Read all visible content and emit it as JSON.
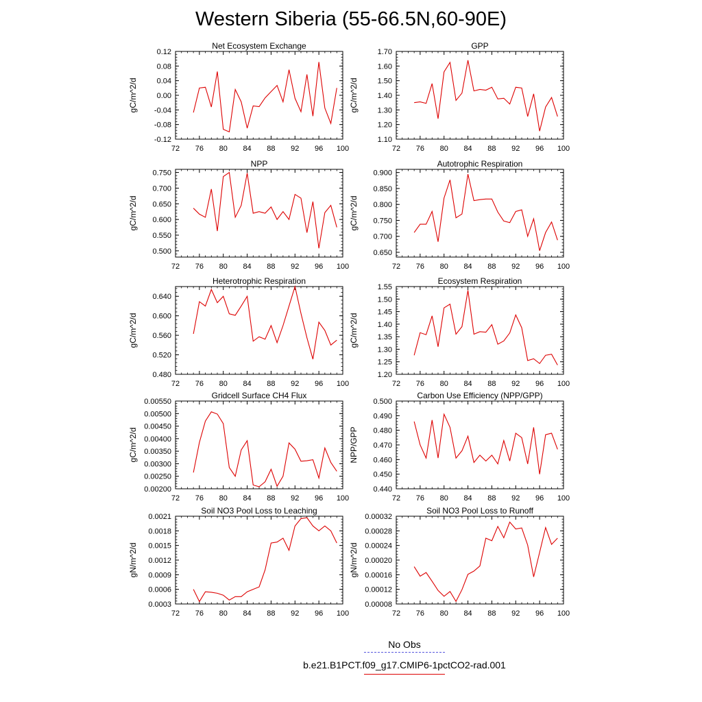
{
  "page": {
    "title": "Western Siberia (55-66.5N,60-90E)"
  },
  "legend": {
    "items": [
      {
        "label": "No Obs",
        "color": "#5555dd",
        "style": "dashed"
      },
      {
        "label": "b.e21.B1PCT.f09_g17.CMIP6-1pctCO2-rad.001",
        "color": "#dd0000",
        "style": "solid"
      }
    ]
  },
  "chart_data": [
    {
      "type": "line",
      "title": "Net Ecosystem Exchange",
      "ylabel": "gC/m^2/d",
      "xlim": [
        72,
        100
      ],
      "ylim": [
        -0.12,
        0.12
      ],
      "yticks": [
        -0.12,
        -0.08,
        -0.04,
        0.0,
        0.04,
        0.08,
        0.12
      ],
      "ytick_labels": [
        "-0.12",
        "-0.08",
        "-0.04",
        "0.00",
        "0.04",
        "0.08",
        "0.12"
      ],
      "xticks": [
        72,
        76,
        80,
        84,
        88,
        92,
        96,
        100
      ],
      "series": [
        {
          "color": "#dd0000",
          "x": [
            75,
            76,
            77,
            78,
            79,
            80,
            81,
            82,
            83,
            84,
            85,
            86,
            87,
            88,
            89,
            90,
            91,
            92,
            93,
            94,
            95,
            96,
            97,
            98,
            99
          ],
          "y": [
            -0.047,
            0.02,
            0.022,
            -0.032,
            0.065,
            -0.093,
            -0.1,
            0.016,
            -0.018,
            -0.09,
            -0.029,
            -0.031,
            -0.007,
            0.01,
            0.027,
            -0.018,
            0.07,
            -0.008,
            -0.045,
            0.057,
            -0.057,
            0.091,
            -0.035,
            -0.077,
            0.02
          ]
        }
      ]
    },
    {
      "type": "line",
      "title": "GPP",
      "ylabel": "gC/m^2/d",
      "xlim": [
        72,
        100
      ],
      "ylim": [
        1.1,
        1.7
      ],
      "yticks": [
        1.1,
        1.2,
        1.3,
        1.4,
        1.5,
        1.6,
        1.7
      ],
      "ytick_labels": [
        "1.10",
        "1.20",
        "1.30",
        "1.40",
        "1.50",
        "1.60",
        "1.70"
      ],
      "xticks": [
        72,
        76,
        80,
        84,
        88,
        92,
        96,
        100
      ],
      "series": [
        {
          "color": "#dd0000",
          "x": [
            75,
            76,
            77,
            78,
            79,
            80,
            81,
            82,
            83,
            84,
            85,
            86,
            87,
            88,
            89,
            90,
            91,
            92,
            93,
            94,
            95,
            96,
            97,
            98,
            99
          ],
          "y": [
            1.35,
            1.355,
            1.345,
            1.48,
            1.24,
            1.56,
            1.625,
            1.365,
            1.415,
            1.64,
            1.43,
            1.44,
            1.435,
            1.455,
            1.375,
            1.38,
            1.34,
            1.455,
            1.45,
            1.255,
            1.41,
            1.155,
            1.32,
            1.385,
            1.255
          ]
        }
      ]
    },
    {
      "type": "line",
      "title": "NPP",
      "ylabel": "gC/m^2/d",
      "xlim": [
        72,
        100
      ],
      "ylim": [
        0.48,
        0.76
      ],
      "yticks": [
        0.5,
        0.55,
        0.6,
        0.65,
        0.7,
        0.75
      ],
      "ytick_labels": [
        "0.500",
        "0.550",
        "0.600",
        "0.650",
        "0.700",
        "0.750"
      ],
      "xticks": [
        72,
        76,
        80,
        84,
        88,
        92,
        96,
        100
      ],
      "series": [
        {
          "color": "#dd0000",
          "x": [
            75,
            76,
            77,
            78,
            79,
            80,
            81,
            82,
            83,
            84,
            85,
            86,
            87,
            88,
            89,
            90,
            91,
            92,
            93,
            94,
            95,
            96,
            97,
            98,
            99
          ],
          "y": [
            0.636,
            0.617,
            0.607,
            0.697,
            0.563,
            0.737,
            0.75,
            0.607,
            0.645,
            0.748,
            0.62,
            0.625,
            0.62,
            0.64,
            0.6,
            0.625,
            0.6,
            0.68,
            0.668,
            0.558,
            0.657,
            0.508,
            0.622,
            0.645,
            0.575
          ]
        }
      ]
    },
    {
      "type": "line",
      "title": "Autotrophic Respiration",
      "ylabel": "gC/m^2/d",
      "xlim": [
        72,
        100
      ],
      "ylim": [
        0.635,
        0.91
      ],
      "yticks": [
        0.65,
        0.7,
        0.75,
        0.8,
        0.85,
        0.9
      ],
      "ytick_labels": [
        "0.650",
        "0.700",
        "0.750",
        "0.800",
        "0.850",
        "0.900"
      ],
      "xticks": [
        72,
        76,
        80,
        84,
        88,
        92,
        96,
        100
      ],
      "series": [
        {
          "color": "#dd0000",
          "x": [
            75,
            76,
            77,
            78,
            79,
            80,
            81,
            82,
            83,
            84,
            85,
            86,
            87,
            88,
            89,
            90,
            91,
            92,
            93,
            94,
            95,
            96,
            97,
            98,
            99
          ],
          "y": [
            0.712,
            0.738,
            0.738,
            0.778,
            0.683,
            0.82,
            0.877,
            0.758,
            0.77,
            0.895,
            0.812,
            0.815,
            0.817,
            0.817,
            0.776,
            0.748,
            0.743,
            0.778,
            0.783,
            0.7,
            0.755,
            0.655,
            0.712,
            0.745,
            0.688
          ]
        }
      ]
    },
    {
      "type": "line",
      "title": "Heterotrophic Respiration",
      "ylabel": "gC/m^2/d",
      "xlim": [
        72,
        100
      ],
      "ylim": [
        0.48,
        0.66
      ],
      "yticks": [
        0.48,
        0.52,
        0.56,
        0.6,
        0.64
      ],
      "ytick_labels": [
        "0.480",
        "0.520",
        "0.560",
        "0.600",
        "0.640"
      ],
      "xticks": [
        72,
        76,
        80,
        84,
        88,
        92,
        96,
        100
      ],
      "series": [
        {
          "color": "#dd0000",
          "x": [
            75,
            76,
            77,
            78,
            79,
            80,
            81,
            82,
            83,
            84,
            85,
            86,
            87,
            88,
            89,
            90,
            91,
            92,
            93,
            94,
            95,
            96,
            97,
            98,
            99
          ],
          "y": [
            0.563,
            0.629,
            0.62,
            0.654,
            0.627,
            0.64,
            0.604,
            0.601,
            0.62,
            0.64,
            0.548,
            0.557,
            0.552,
            0.58,
            0.545,
            0.58,
            0.62,
            0.66,
            0.605,
            0.555,
            0.511,
            0.587,
            0.57,
            0.54,
            0.55
          ]
        }
      ]
    },
    {
      "type": "line",
      "title": "Ecosystem Respiration",
      "ylabel": "gC/m^2/d",
      "xlim": [
        72,
        100
      ],
      "ylim": [
        1.2,
        1.55
      ],
      "yticks": [
        1.2,
        1.25,
        1.3,
        1.35,
        1.4,
        1.45,
        1.5,
        1.55
      ],
      "ytick_labels": [
        "1.20",
        "1.25",
        "1.30",
        "1.35",
        "1.40",
        "1.45",
        "1.50",
        "1.55"
      ],
      "xticks": [
        72,
        76,
        80,
        84,
        88,
        92,
        96,
        100
      ],
      "series": [
        {
          "color": "#dd0000",
          "x": [
            75,
            76,
            77,
            78,
            79,
            80,
            81,
            82,
            83,
            84,
            85,
            86,
            87,
            88,
            89,
            90,
            91,
            92,
            93,
            94,
            95,
            96,
            97,
            98,
            99
          ],
          "y": [
            1.276,
            1.366,
            1.358,
            1.433,
            1.31,
            1.465,
            1.48,
            1.36,
            1.39,
            1.535,
            1.36,
            1.37,
            1.368,
            1.398,
            1.32,
            1.333,
            1.365,
            1.437,
            1.386,
            1.255,
            1.262,
            1.243,
            1.276,
            1.28,
            1.237
          ]
        }
      ]
    },
    {
      "type": "line",
      "title": "Gridcell Surface CH4 Flux",
      "ylabel": "gC/m^2/d",
      "xlim": [
        72,
        100
      ],
      "ylim": [
        0.002,
        0.0055
      ],
      "yticks": [
        0.002,
        0.0025,
        0.003,
        0.0035,
        0.004,
        0.0045,
        0.005,
        0.0055
      ],
      "ytick_labels": [
        "0.00200",
        "0.00250",
        "0.00300",
        "0.00350",
        "0.00400",
        "0.00450",
        "0.00500",
        "0.00550"
      ],
      "xticks": [
        72,
        76,
        80,
        84,
        88,
        92,
        96,
        100
      ],
      "series": [
        {
          "color": "#dd0000",
          "x": [
            75,
            76,
            77,
            78,
            79,
            80,
            81,
            82,
            83,
            84,
            85,
            86,
            87,
            88,
            89,
            90,
            91,
            92,
            93,
            94,
            95,
            96,
            97,
            98,
            99
          ],
          "y": [
            0.00265,
            0.00385,
            0.0047,
            0.00507,
            0.00498,
            0.0046,
            0.00285,
            0.0025,
            0.00355,
            0.00392,
            0.00215,
            0.00208,
            0.00228,
            0.00278,
            0.0021,
            0.0025,
            0.00383,
            0.00358,
            0.0031,
            0.00312,
            0.00316,
            0.00243,
            0.00363,
            0.00305,
            0.0027
          ]
        }
      ]
    },
    {
      "type": "line",
      "title": "Carbon Use Efficiency (NPP/GPP)",
      "ylabel": "NPP/GPP",
      "xlim": [
        72,
        100
      ],
      "ylim": [
        0.44,
        0.5
      ],
      "yticks": [
        0.44,
        0.45,
        0.46,
        0.47,
        0.48,
        0.49,
        0.5
      ],
      "ytick_labels": [
        "0.440",
        "0.450",
        "0.460",
        "0.470",
        "0.480",
        "0.490",
        "0.500"
      ],
      "xticks": [
        72,
        76,
        80,
        84,
        88,
        92,
        96,
        100
      ],
      "series": [
        {
          "color": "#dd0000",
          "x": [
            75,
            76,
            77,
            78,
            79,
            80,
            81,
            82,
            83,
            84,
            85,
            86,
            87,
            88,
            89,
            90,
            91,
            92,
            93,
            94,
            95,
            96,
            97,
            98,
            99
          ],
          "y": [
            0.486,
            0.47,
            0.461,
            0.487,
            0.461,
            0.491,
            0.482,
            0.461,
            0.466,
            0.476,
            0.458,
            0.463,
            0.459,
            0.463,
            0.457,
            0.473,
            0.459,
            0.478,
            0.475,
            0.457,
            0.482,
            0.45,
            0.477,
            0.478,
            0.467
          ]
        }
      ]
    },
    {
      "type": "line",
      "title": "Soil NO3 Pool Loss to Leaching",
      "ylabel": "gN/m^2/d",
      "xlim": [
        72,
        100
      ],
      "ylim": [
        0.0003,
        0.0021
      ],
      "yticks": [
        0.0003,
        0.0006,
        0.0009,
        0.0012,
        0.0015,
        0.0018,
        0.0021
      ],
      "ytick_labels": [
        "0.0003",
        "0.0006",
        "0.0009",
        "0.0012",
        "0.0015",
        "0.0018",
        "0.0021"
      ],
      "xticks": [
        72,
        76,
        80,
        84,
        88,
        92,
        96,
        100
      ],
      "series": [
        {
          "color": "#dd0000",
          "x": [
            75,
            76,
            77,
            78,
            79,
            80,
            81,
            82,
            83,
            84,
            85,
            86,
            87,
            88,
            89,
            90,
            91,
            92,
            93,
            94,
            95,
            96,
            97,
            98,
            99
          ],
          "y": [
            0.0006,
            0.00035,
            0.00055,
            0.00054,
            0.00052,
            0.00048,
            0.00038,
            0.00045,
            0.00045,
            0.00055,
            0.0006,
            0.00065,
            0.001,
            0.00155,
            0.00157,
            0.00165,
            0.0014,
            0.0019,
            0.00205,
            0.00207,
            0.0019,
            0.0018,
            0.0019,
            0.0018,
            0.00155
          ]
        }
      ]
    },
    {
      "type": "line",
      "title": "Soil NO3 Pool Loss to Runoff",
      "ylabel": "gN/m^2/d",
      "xlim": [
        72,
        100
      ],
      "ylim": [
        8e-05,
        0.00032
      ],
      "yticks": [
        8e-05,
        0.00012,
        0.00016,
        0.0002,
        0.00024,
        0.00028,
        0.00032
      ],
      "ytick_labels": [
        "0.00008",
        "0.00012",
        "0.00016",
        "0.00020",
        "0.00024",
        "0.00028",
        "0.00032"
      ],
      "xticks": [
        72,
        76,
        80,
        84,
        88,
        92,
        96,
        100
      ],
      "series": [
        {
          "color": "#dd0000",
          "x": [
            75,
            76,
            77,
            78,
            79,
            80,
            81,
            82,
            83,
            84,
            85,
            86,
            87,
            88,
            89,
            90,
            91,
            92,
            93,
            94,
            95,
            96,
            97,
            98,
            99
          ],
          "y": [
            0.000182,
            0.000156,
            0.000166,
            0.000142,
            0.000117,
            0.000101,
            0.000114,
            8.7e-05,
            0.000119,
            0.000161,
            0.00017,
            0.000184,
            0.00026,
            0.000253,
            0.000292,
            0.000261,
            0.000304,
            0.000285,
            0.000288,
            0.000241,
            0.000154,
            0.000221,
            0.000289,
            0.000243,
            0.00026
          ]
        }
      ]
    }
  ]
}
